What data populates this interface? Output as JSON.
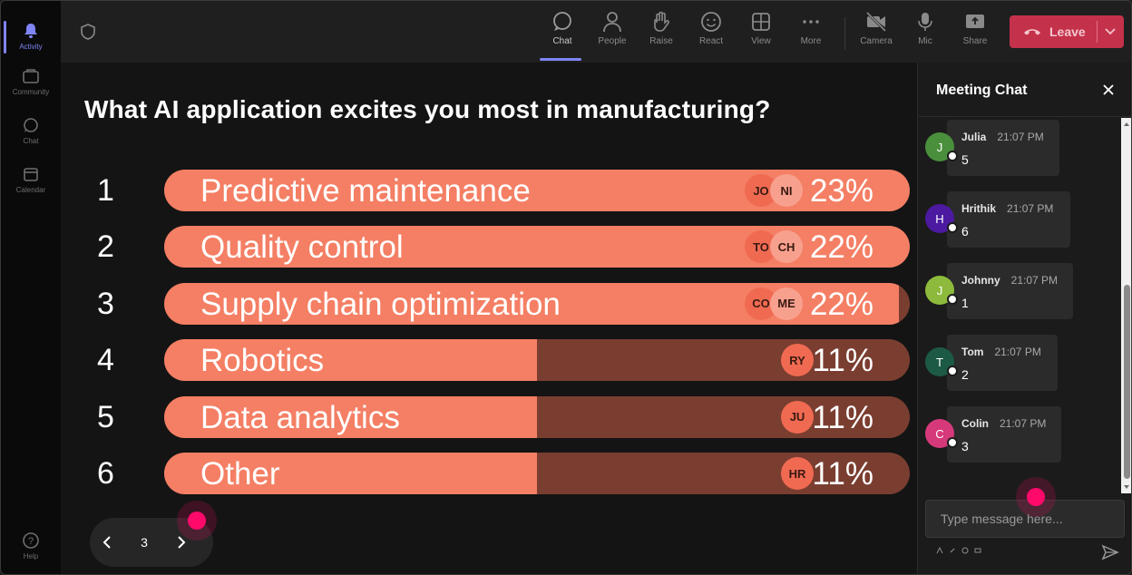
{
  "rail": {
    "items": [
      {
        "label": "Activity",
        "icon": "bell-icon"
      },
      {
        "label": "Community",
        "icon": "community-icon"
      },
      {
        "label": "Chat",
        "icon": "chat-icon"
      },
      {
        "label": "Calendar",
        "icon": "calendar-icon"
      }
    ],
    "help_label": "Help",
    "accent": "#7f85f5"
  },
  "toolbar": {
    "items": [
      {
        "label": "Chat",
        "icon": "chat-icon"
      },
      {
        "label": "People",
        "icon": "people-icon"
      },
      {
        "label": "Raise",
        "icon": "hand-icon"
      },
      {
        "label": "React",
        "icon": "smiley-icon"
      },
      {
        "label": "View",
        "icon": "grid-icon"
      },
      {
        "label": "More",
        "icon": "ellipsis-icon"
      },
      {
        "label": "Camera",
        "icon": "camera-off-icon"
      },
      {
        "label": "Mic",
        "icon": "mic-icon"
      },
      {
        "label": "Share",
        "icon": "share-icon"
      }
    ],
    "leave_label": "Leave",
    "leave_color": "#c4314b"
  },
  "poll": {
    "question": "What AI application excites you most in manufacturing?",
    "bar_color": "#f47f64",
    "track_color": "#7a3e30",
    "options": [
      {
        "rank": "1",
        "label": "Predictive maintenance",
        "percent": "23%",
        "share": 1.0,
        "voters": [
          "JO",
          "NI"
        ]
      },
      {
        "rank": "2",
        "label": "Quality control",
        "percent": "22%",
        "share": 1.0,
        "voters": [
          "TO",
          "CH"
        ]
      },
      {
        "rank": "3",
        "label": "Supply chain optimization",
        "percent": "22%",
        "share": 0.985,
        "voters": [
          "CO",
          "ME"
        ]
      },
      {
        "rank": "4",
        "label": "Robotics",
        "percent": "11%",
        "share": 0.5,
        "voters": [
          "RY"
        ]
      },
      {
        "rank": "5",
        "label": "Data analytics",
        "percent": "11%",
        "share": 0.5,
        "voters": [
          "JU"
        ]
      },
      {
        "rank": "6",
        "label": "Other",
        "percent": "11%",
        "share": 0.5,
        "voters": [
          "HR"
        ]
      }
    ]
  },
  "pager": {
    "page": "3"
  },
  "chat": {
    "title": "Meeting Chat",
    "messages": [
      {
        "initial": "J",
        "name": "Julia",
        "time": "21:07 PM",
        "text": "5",
        "color": "#4a8f3c"
      },
      {
        "initial": "H",
        "name": "Hrithik",
        "time": "21:07 PM",
        "text": "6",
        "color": "#4b1aa0"
      },
      {
        "initial": "J",
        "name": "Johnny",
        "time": "21:07 PM",
        "text": "1",
        "color": "#8dba3c"
      },
      {
        "initial": "T",
        "name": "Tom",
        "time": "21:07 PM",
        "text": "2",
        "color": "#1d5a45"
      },
      {
        "initial": "C",
        "name": "Colin",
        "time": "21:07 PM",
        "text": "3",
        "color": "#d6397a"
      }
    ],
    "placeholder": "Type message here..."
  }
}
